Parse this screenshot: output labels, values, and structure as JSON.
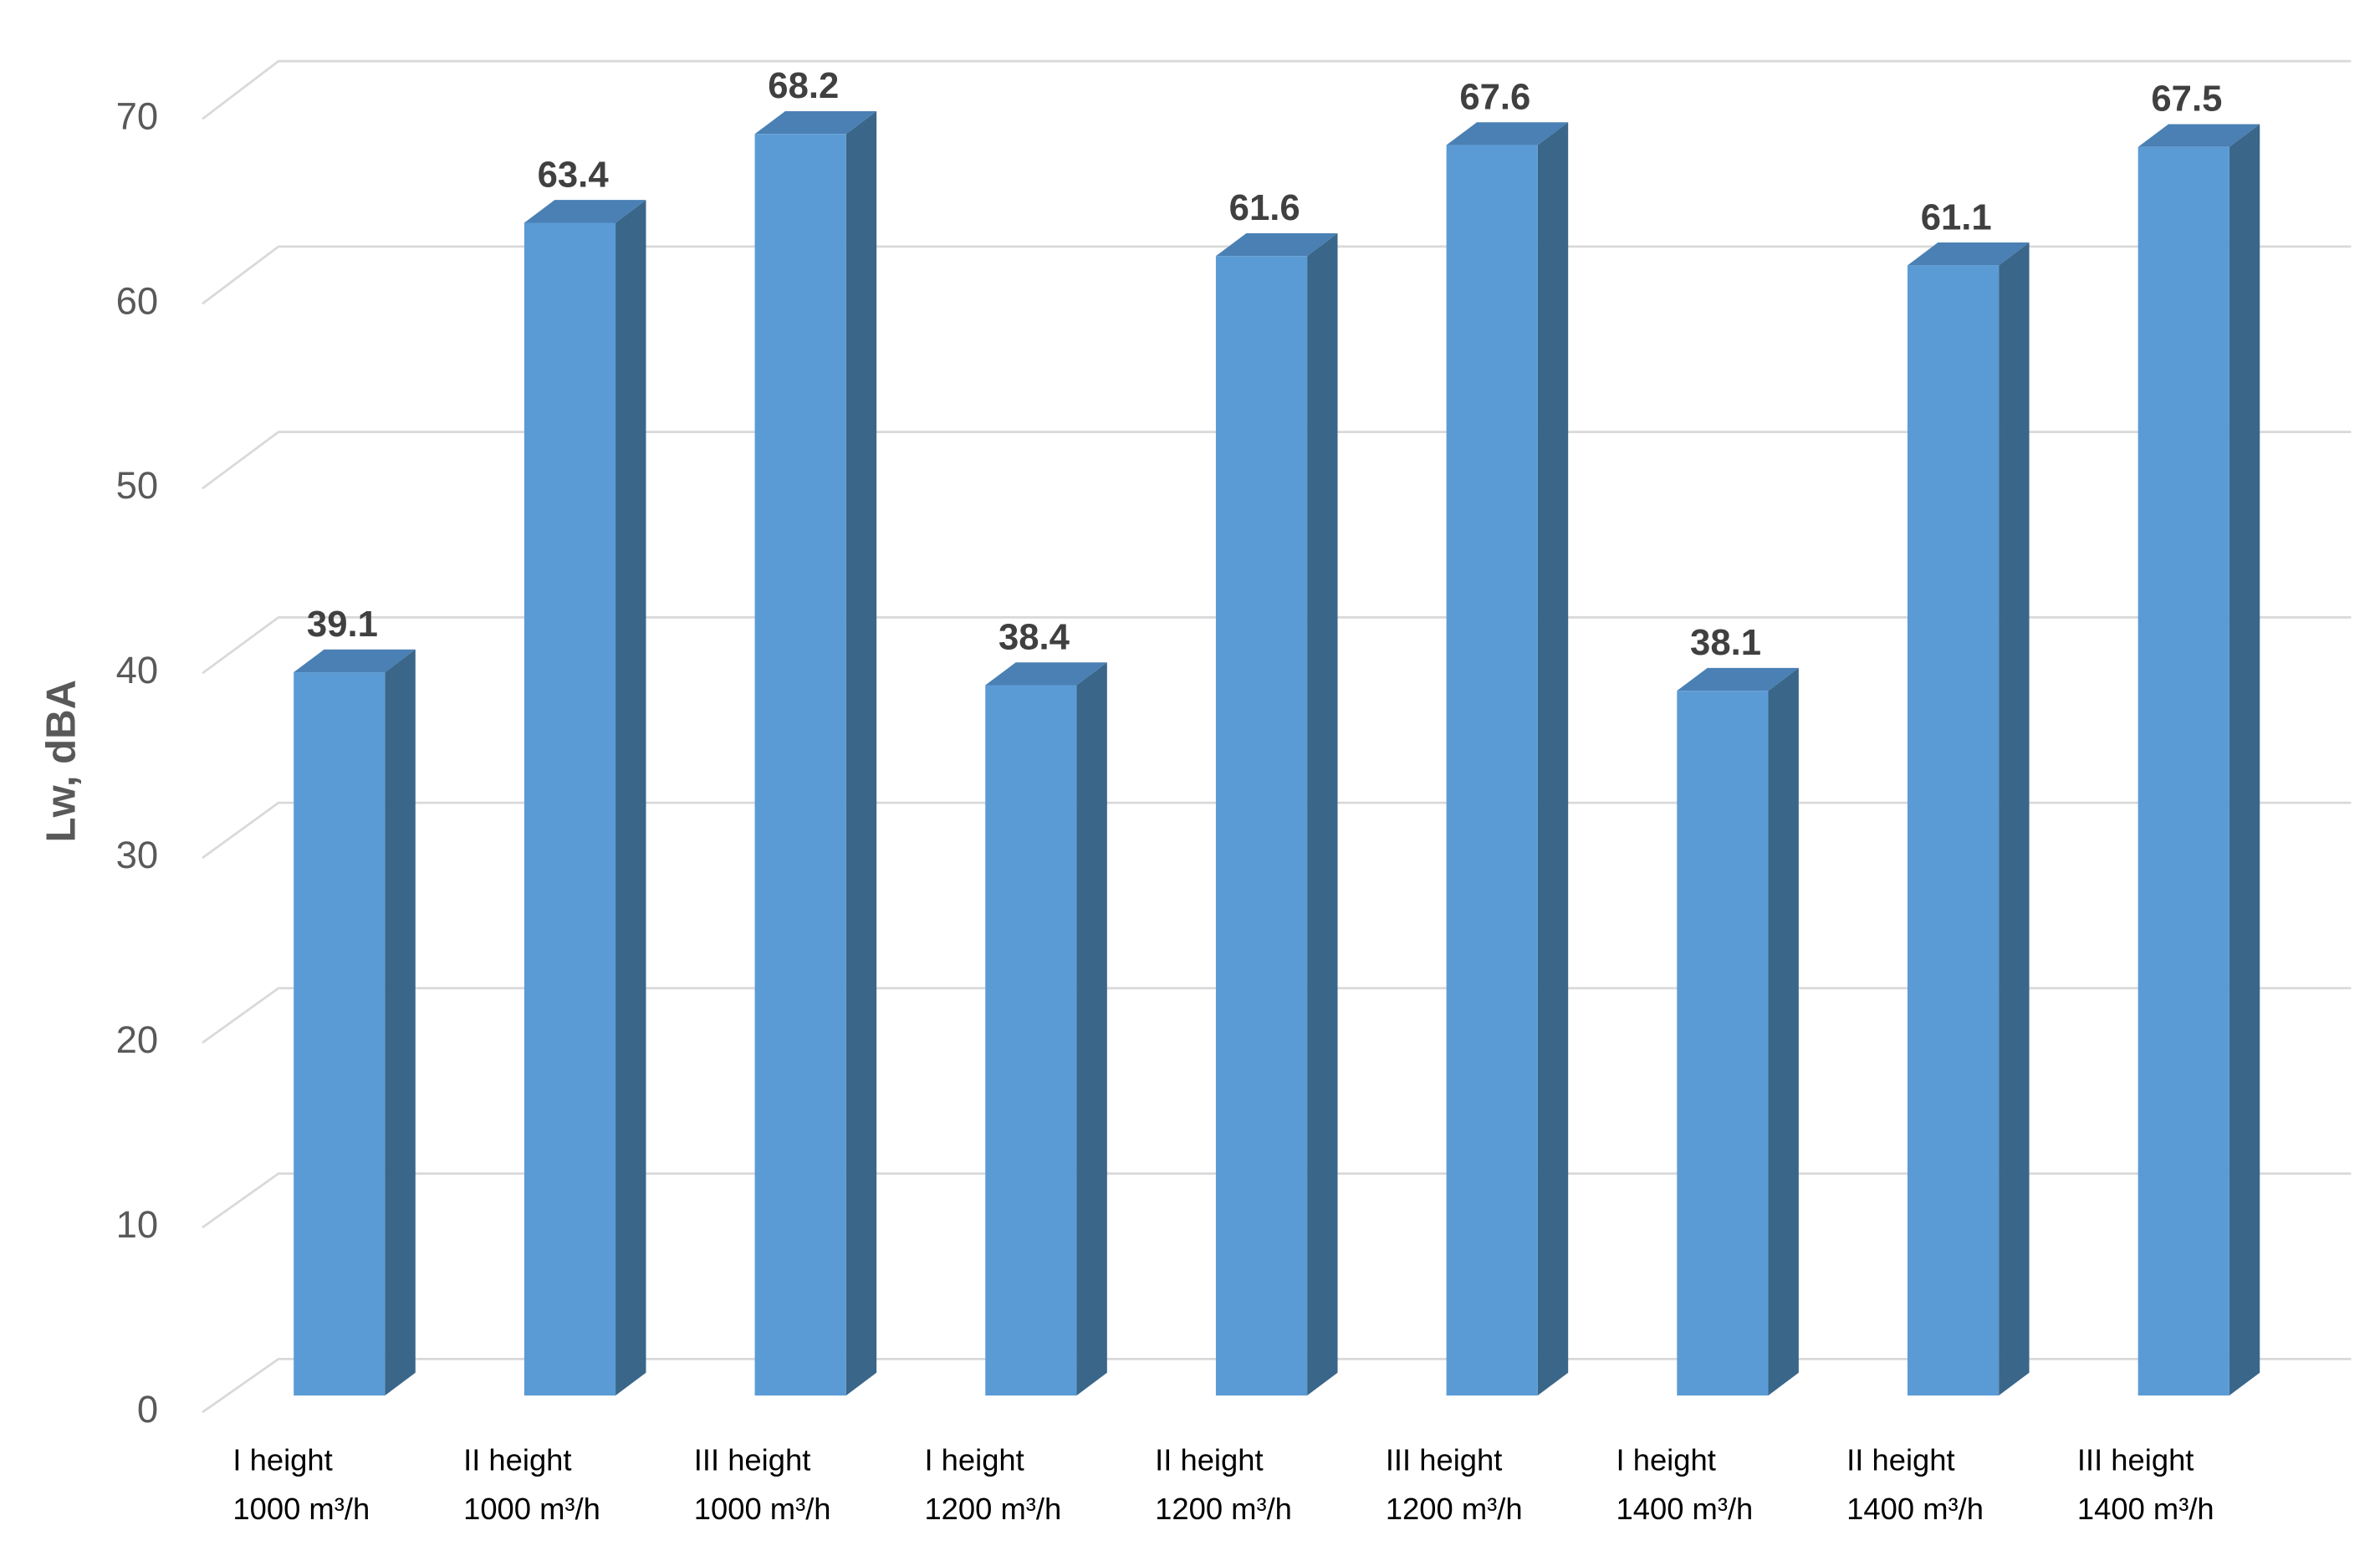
{
  "chart_data": {
    "type": "bar3d",
    "y_label": "Lw, dBA",
    "categories": [
      [
        "I height",
        "1000 m³/h"
      ],
      [
        "II height",
        "1000 m³/h"
      ],
      [
        "III height",
        "1000 m³/h"
      ],
      [
        "I height",
        "1200 m³/h"
      ],
      [
        "II height",
        "1200 m³/h"
      ],
      [
        "III height",
        "1200 m³/h"
      ],
      [
        "I height",
        "1400 m³/h"
      ],
      [
        "II height",
        "1400 m³/h"
      ],
      [
        "III height",
        "1400 m³/h"
      ]
    ],
    "values": [
      39.1,
      63.4,
      68.2,
      38.4,
      61.6,
      67.6,
      38.1,
      61.1,
      67.5
    ],
    "color": "#5b9bd5",
    "ylim": [
      0,
      70
    ],
    "yticks": [
      0,
      10,
      20,
      30,
      40,
      50,
      60,
      70
    ],
    "grid": true
  }
}
